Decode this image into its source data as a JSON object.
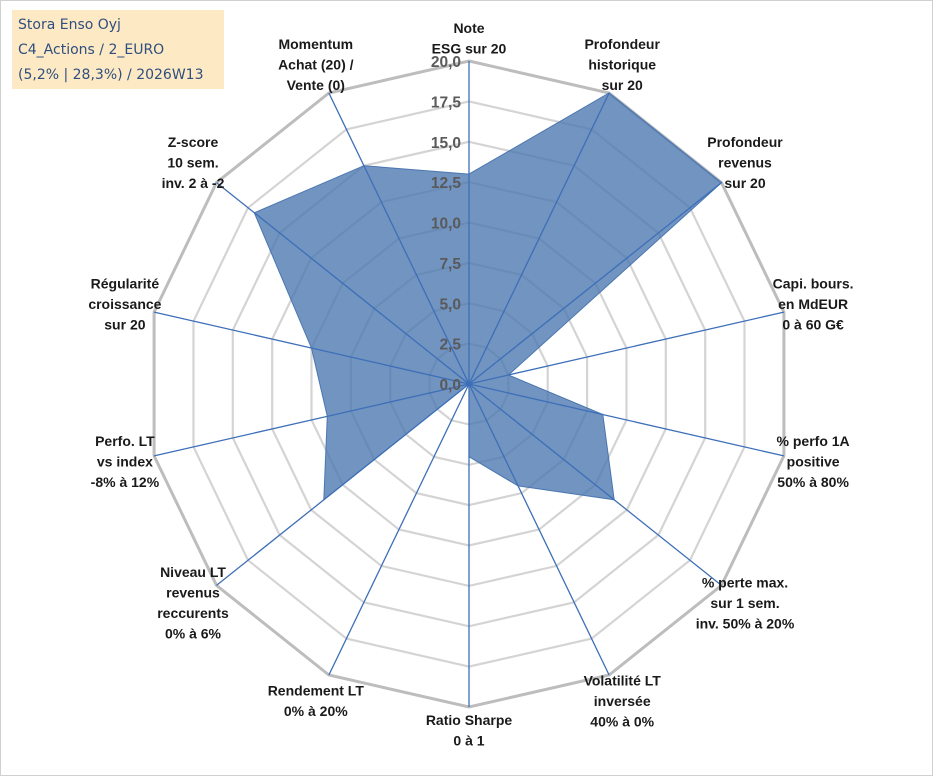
{
  "chart_data": {
    "type": "radar",
    "title_box": {
      "line1": "Stora Enso Oyj",
      "line2": "C4_Actions / 2_EURO",
      "line3": "(5,2% | 28,3%) / 2026W13"
    },
    "range": [
      0,
      20
    ],
    "tick_values": [
      0,
      2.5,
      5,
      7.5,
      10,
      12.5,
      15,
      17.5,
      20
    ],
    "tick_labels": [
      "0,0",
      "2,5",
      "5,0",
      "7,5",
      "10,0",
      "12,5",
      "15,0",
      "17,5",
      "20,0"
    ],
    "categories": [
      [
        "Note",
        "ESG sur 20"
      ],
      [
        "Profondeur",
        "historique",
        "sur 20"
      ],
      [
        "Profondeur",
        "revenus",
        "sur 20"
      ],
      [
        "Capi. bours.",
        "en MdEUR",
        "0 à 60 G€"
      ],
      [
        "% perfo 1A",
        "positive",
        "50% à 80%"
      ],
      [
        "% perte max.",
        "sur 1 sem.",
        "inv. 50% à 20%"
      ],
      [
        "Volatilité LT",
        "inversée",
        "40% à 0%"
      ],
      [
        "Ratio Sharpe",
        "0 à 1"
      ],
      [
        "Rendement LT",
        "0% à 20%"
      ],
      [
        "Niveau LT",
        "revenus",
        "reccurents",
        "0% à 6%"
      ],
      [
        "Perfo. LT",
        "vs index",
        "-8% à 12%"
      ],
      [
        "Régularité",
        "croissance",
        "sur 20"
      ],
      [
        "Z-score",
        "10 sem.",
        "inv. 2 à -2"
      ],
      [
        "Momentum",
        "Achat (20) /",
        "Vente (0)"
      ]
    ],
    "series": [
      {
        "name": "Stora Enso Oyj",
        "color": "#4a76b0",
        "values": [
          13,
          20,
          20,
          2.5,
          8.5,
          11.5,
          7,
          4.5,
          0,
          11.5,
          9,
          10,
          17,
          15
        ]
      }
    ]
  }
}
